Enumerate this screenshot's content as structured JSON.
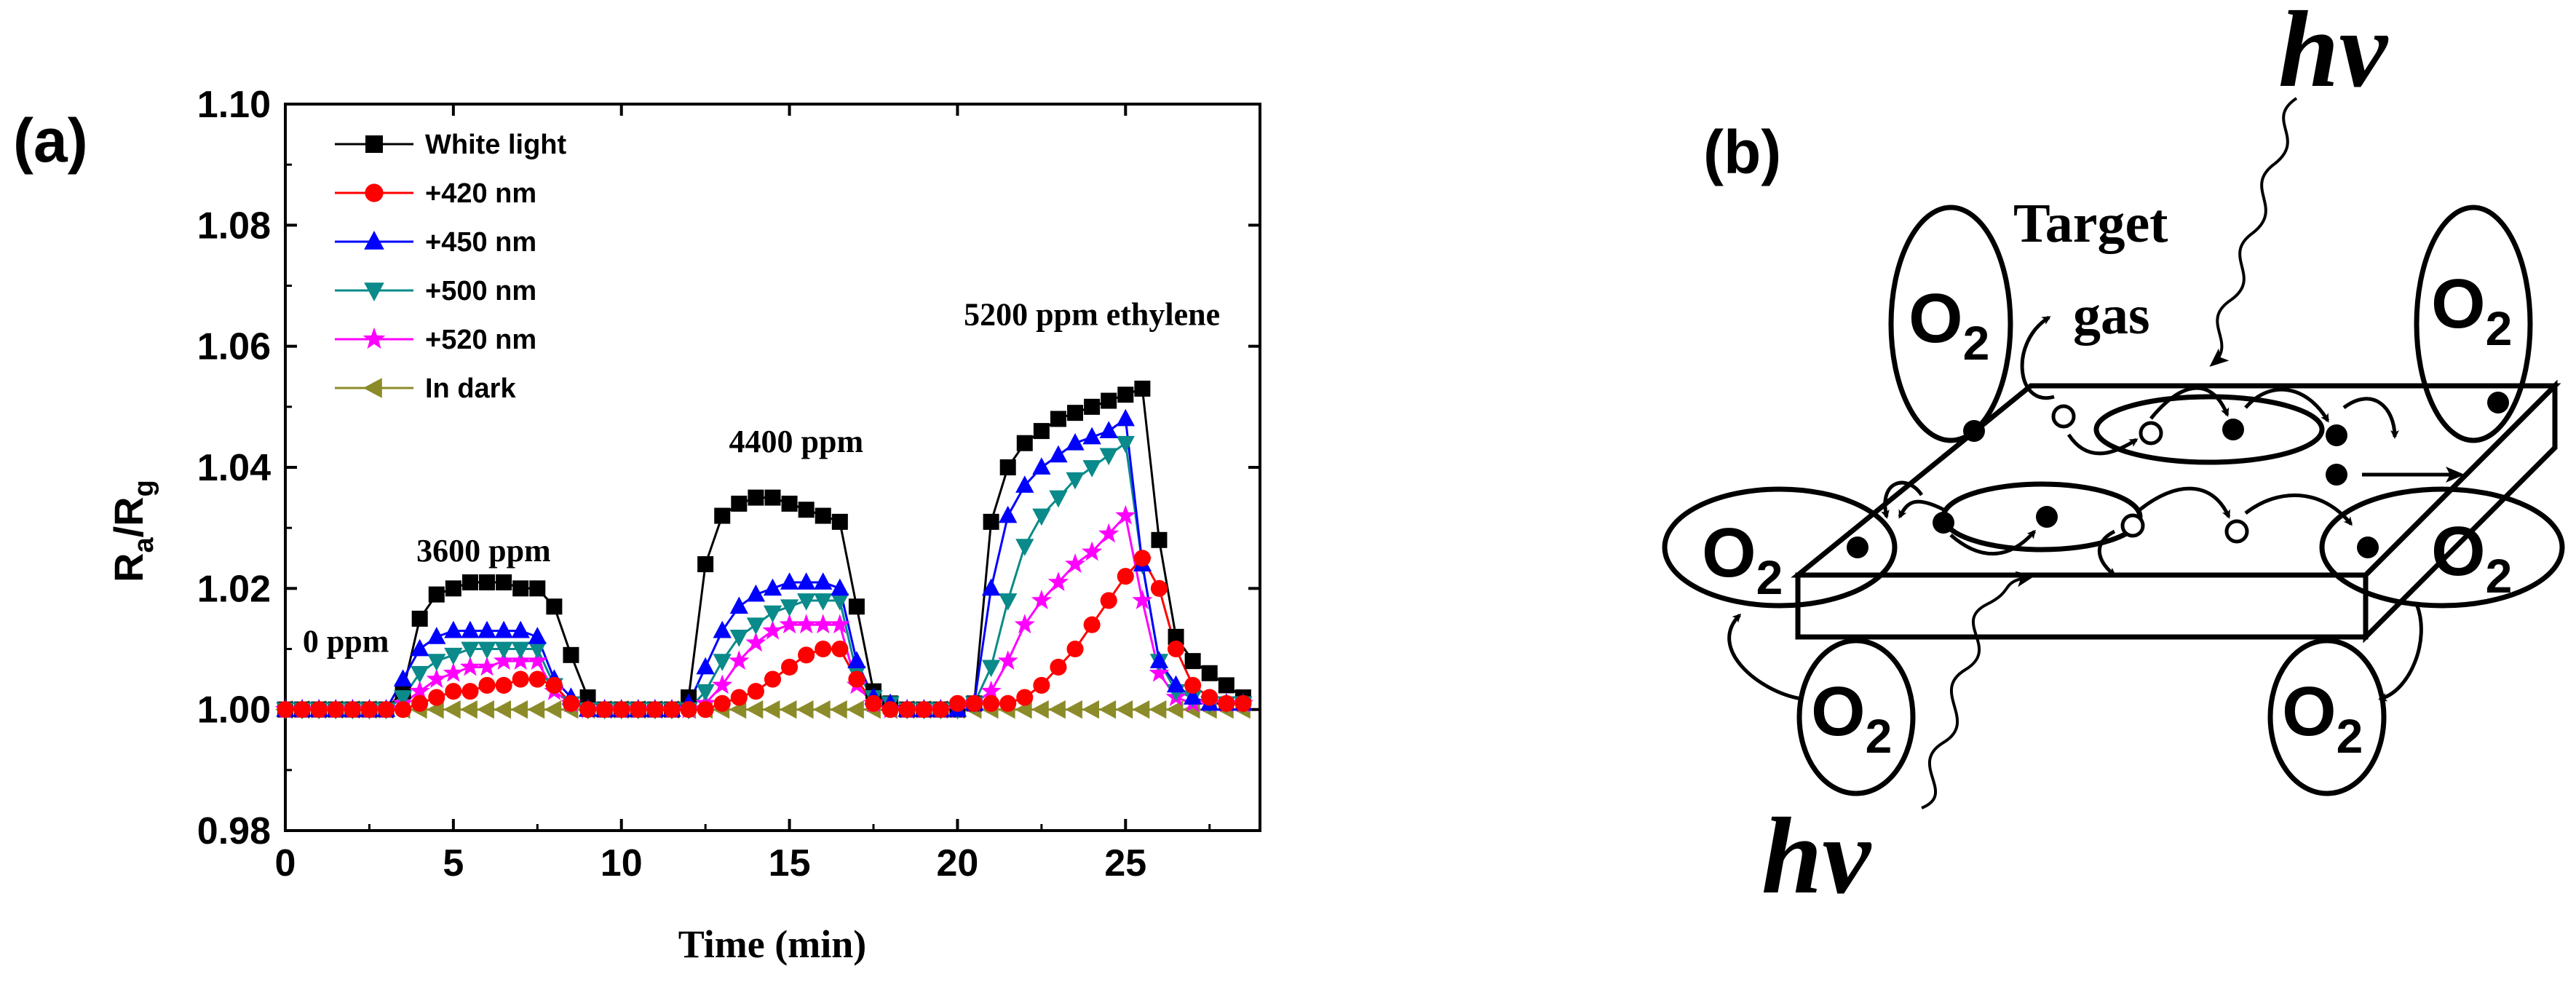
{
  "panel_a": {
    "label": "(a)",
    "chart_data": {
      "type": "line",
      "title": "",
      "xlabel": "Time (min)",
      "ylabel_main": "R",
      "ylabel_sub1": "a",
      "ylabel_slash": "/R",
      "ylabel_sub2": "g",
      "xlim": [
        0,
        29
      ],
      "ylim": [
        0.98,
        1.1
      ],
      "x_ticks": [
        0,
        5,
        10,
        15,
        20,
        25
      ],
      "x_tick_labels": [
        "0",
        "5",
        "10",
        "15",
        "20",
        "25"
      ],
      "y_ticks": [
        0.98,
        1.0,
        1.02,
        1.04,
        1.06,
        1.08,
        1.1
      ],
      "y_tick_labels": [
        "0.98",
        "1.00",
        "1.02",
        "1.04",
        "1.06",
        "1.08",
        "1.10"
      ],
      "legend_position": "top-left",
      "annotations": [
        {
          "text": "0 ppm",
          "x": 1.8,
          "y": 1.0095
        },
        {
          "text": "3600 ppm",
          "x": 5.9,
          "y": 1.0245
        },
        {
          "text": "4400 ppm",
          "x": 15.2,
          "y": 1.0425
        },
        {
          "text": "5200 ppm ethylene",
          "x": 24.0,
          "y": 1.0635
        }
      ],
      "series": [
        {
          "name": "White light",
          "marker": "square",
          "color": "#000000",
          "x": [
            0,
            0.5,
            1,
            1.5,
            2,
            2.5,
            3,
            3.5,
            4,
            4.5,
            5,
            5.5,
            6,
            6.5,
            7,
            7.5,
            8,
            8.5,
            9,
            9.5,
            10,
            10.5,
            11,
            11.5,
            12,
            12.5,
            13,
            13.5,
            14,
            14.5,
            15,
            15.5,
            16,
            16.5,
            17,
            17.5,
            18,
            18.5,
            19,
            19.5,
            20,
            20.5,
            21,
            21.5,
            22,
            22.5,
            23,
            23.5,
            24,
            24.5,
            25,
            25.5,
            26,
            26.5,
            27,
            27.5,
            28,
            28.5
          ],
          "y": [
            1.0,
            1.0,
            1.0,
            1.0,
            1.0,
            1.0,
            1.0,
            1.003,
            1.015,
            1.019,
            1.02,
            1.021,
            1.021,
            1.021,
            1.02,
            1.02,
            1.017,
            1.009,
            1.002,
            1.0,
            1.0,
            1.0,
            1.0,
            1.0,
            1.002,
            1.024,
            1.032,
            1.034,
            1.035,
            1.035,
            1.034,
            1.033,
            1.032,
            1.031,
            1.017,
            1.003,
            1.001,
            1.0,
            1.0,
            1.0,
            1.0,
            1.001,
            1.031,
            1.04,
            1.044,
            1.046,
            1.048,
            1.049,
            1.05,
            1.051,
            1.052,
            1.053,
            1.028,
            1.012,
            1.008,
            1.006,
            1.004,
            1.002
          ]
        },
        {
          "name": "+420 nm",
          "marker": "circle",
          "color": "#ff0000",
          "x": [
            0,
            0.5,
            1,
            1.5,
            2,
            2.5,
            3,
            3.5,
            4,
            4.5,
            5,
            5.5,
            6,
            6.5,
            7,
            7.5,
            8,
            8.5,
            9,
            9.5,
            10,
            10.5,
            11,
            11.5,
            12,
            12.5,
            13,
            13.5,
            14,
            14.5,
            15,
            15.5,
            16,
            16.5,
            17,
            17.5,
            18,
            18.5,
            19,
            19.5,
            20,
            20.5,
            21,
            21.5,
            22,
            22.5,
            23,
            23.5,
            24,
            24.5,
            25,
            25.5,
            26,
            26.5,
            27,
            27.5,
            28,
            28.5
          ],
          "y": [
            1.0,
            1.0,
            1.0,
            1.0,
            1.0,
            1.0,
            1.0,
            1.0,
            1.001,
            1.002,
            1.003,
            1.003,
            1.004,
            1.004,
            1.005,
            1.005,
            1.004,
            1.001,
            1.0,
            1.0,
            1.0,
            1.0,
            1.0,
            1.0,
            1.0,
            1.0,
            1.001,
            1.002,
            1.003,
            1.005,
            1.007,
            1.009,
            1.01,
            1.01,
            1.005,
            1.001,
            1.0,
            1.0,
            1.0,
            1.0,
            1.001,
            1.001,
            1.001,
            1.001,
            1.002,
            1.004,
            1.007,
            1.01,
            1.014,
            1.018,
            1.022,
            1.025,
            1.02,
            1.01,
            1.004,
            1.002,
            1.001,
            1.001
          ]
        },
        {
          "name": "+450 nm",
          "marker": "triangle-up",
          "color": "#0000ff",
          "x": [
            0,
            0.5,
            1,
            1.5,
            2,
            2.5,
            3,
            3.5,
            4,
            4.5,
            5,
            5.5,
            6,
            6.5,
            7,
            7.5,
            8,
            8.5,
            9,
            9.5,
            10,
            10.5,
            11,
            11.5,
            12,
            12.5,
            13,
            13.5,
            14,
            14.5,
            15,
            15.5,
            16,
            16.5,
            17,
            17.5,
            18,
            18.5,
            19,
            19.5,
            20,
            20.5,
            21,
            21.5,
            22,
            22.5,
            23,
            23.5,
            24,
            24.5,
            25,
            25.5,
            26,
            26.5,
            27,
            27.5,
            28,
            28.5
          ],
          "y": [
            1.0,
            1.0,
            1.0,
            1.0,
            1.0,
            1.0,
            1.0,
            1.005,
            1.01,
            1.012,
            1.013,
            1.013,
            1.013,
            1.013,
            1.013,
            1.012,
            1.005,
            1.002,
            1.0,
            1.0,
            1.0,
            1.0,
            1.0,
            1.0,
            1.001,
            1.007,
            1.013,
            1.017,
            1.019,
            1.02,
            1.021,
            1.021,
            1.021,
            1.02,
            1.008,
            1.002,
            1.001,
            1.0,
            1.0,
            1.0,
            1.0,
            1.001,
            1.02,
            1.032,
            1.037,
            1.04,
            1.042,
            1.044,
            1.045,
            1.046,
            1.048,
            1.024,
            1.008,
            1.004,
            1.002,
            1.001,
            1.001,
            1.001
          ]
        },
        {
          "name": "+500 nm",
          "marker": "triangle-down",
          "color": "#0a8a8a",
          "x": [
            0,
            0.5,
            1,
            1.5,
            2,
            2.5,
            3,
            3.5,
            4,
            4.5,
            5,
            5.5,
            6,
            6.5,
            7,
            7.5,
            8,
            8.5,
            9,
            9.5,
            10,
            10.5,
            11,
            11.5,
            12,
            12.5,
            13,
            13.5,
            14,
            14.5,
            15,
            15.5,
            16,
            16.5,
            17,
            17.5,
            18,
            18.5,
            19,
            19.5,
            20,
            20.5,
            21,
            21.5,
            22,
            22.5,
            23,
            23.5,
            24,
            24.5,
            25,
            25.5,
            26,
            26.5,
            27,
            27.5,
            28,
            28.5
          ],
          "y": [
            1.0,
            1.0,
            1.0,
            1.0,
            1.0,
            1.0,
            1.0,
            1.002,
            1.006,
            1.008,
            1.009,
            1.01,
            1.01,
            1.01,
            1.01,
            1.01,
            1.004,
            1.001,
            1.0,
            1.0,
            1.0,
            1.0,
            1.0,
            1.0,
            1.0,
            1.003,
            1.008,
            1.012,
            1.014,
            1.016,
            1.017,
            1.018,
            1.018,
            1.018,
            1.006,
            1.002,
            1.001,
            1.0,
            1.0,
            1.0,
            1.0,
            1.001,
            1.007,
            1.018,
            1.027,
            1.032,
            1.035,
            1.038,
            1.04,
            1.042,
            1.044,
            1.024,
            1.008,
            1.003,
            1.002,
            1.001,
            1.001,
            1.001
          ]
        },
        {
          "name": "+520 nm",
          "marker": "star",
          "color": "#ff00ff",
          "x": [
            0,
            0.5,
            1,
            1.5,
            2,
            2.5,
            3,
            3.5,
            4,
            4.5,
            5,
            5.5,
            6,
            6.5,
            7,
            7.5,
            8,
            8.5,
            9,
            9.5,
            10,
            10.5,
            11,
            11.5,
            12,
            12.5,
            13,
            13.5,
            14,
            14.5,
            15,
            15.5,
            16,
            16.5,
            17,
            17.5,
            18,
            18.5,
            19,
            19.5,
            20,
            20.5,
            21,
            21.5,
            22,
            22.5,
            23,
            23.5,
            24,
            24.5,
            25,
            25.5,
            26,
            26.5,
            27,
            27.5,
            28,
            28.5
          ],
          "y": [
            1.0,
            1.0,
            1.0,
            1.0,
            1.0,
            1.0,
            1.0,
            1.001,
            1.003,
            1.005,
            1.006,
            1.007,
            1.007,
            1.008,
            1.008,
            1.008,
            1.003,
            1.001,
            1.0,
            1.0,
            1.0,
            1.0,
            1.0,
            1.0,
            1.0,
            1.001,
            1.004,
            1.008,
            1.011,
            1.013,
            1.014,
            1.014,
            1.014,
            1.014,
            1.004,
            1.001,
            1.0,
            1.0,
            1.0,
            1.0,
            1.0,
            1.001,
            1.003,
            1.008,
            1.014,
            1.018,
            1.021,
            1.024,
            1.026,
            1.029,
            1.032,
            1.018,
            1.006,
            1.002,
            1.001,
            1.001,
            1.001,
            1.001
          ]
        },
        {
          "name": "In dark",
          "marker": "triangle-left",
          "color": "#8b8b2a",
          "x": [
            0,
            0.5,
            1,
            1.5,
            2,
            2.5,
            3,
            3.5,
            4,
            4.5,
            5,
            5.5,
            6,
            6.5,
            7,
            7.5,
            8,
            8.5,
            9,
            9.5,
            10,
            10.5,
            11,
            11.5,
            12,
            12.5,
            13,
            13.5,
            14,
            14.5,
            15,
            15.5,
            16,
            16.5,
            17,
            17.5,
            18,
            18.5,
            19,
            19.5,
            20,
            20.5,
            21,
            21.5,
            22,
            22.5,
            23,
            23.5,
            24,
            24.5,
            25,
            25.5,
            26,
            26.5,
            27,
            27.5,
            28,
            28.5
          ],
          "y": [
            1.0,
            1.0,
            1.0,
            1.0,
            1.0,
            1.0,
            1.0,
            1.0,
            1.0,
            1.0,
            1.0,
            1.0,
            1.0,
            1.0,
            1.0,
            1.0,
            1.0,
            1.0,
            1.0,
            1.0,
            1.0,
            1.0,
            1.0,
            1.0,
            1.0,
            1.0,
            1.0,
            1.0,
            1.0,
            1.0,
            1.0,
            1.0,
            1.0,
            1.0,
            1.0,
            1.0,
            1.0,
            1.0,
            1.0,
            1.0,
            1.0,
            1.0,
            1.0,
            1.0,
            1.0,
            1.0,
            1.0,
            1.0,
            1.0,
            1.0,
            1.0,
            1.0,
            1.0,
            1.0,
            1.0,
            1.0,
            1.0,
            1.0
          ]
        }
      ]
    }
  },
  "panel_b": {
    "label": "(b)",
    "hv_top": "hν",
    "hv_bottom": "hν",
    "target_gas_line1": "Target",
    "target_gas_line2": "gas",
    "o2_main": "O",
    "o2_sub": "2"
  }
}
